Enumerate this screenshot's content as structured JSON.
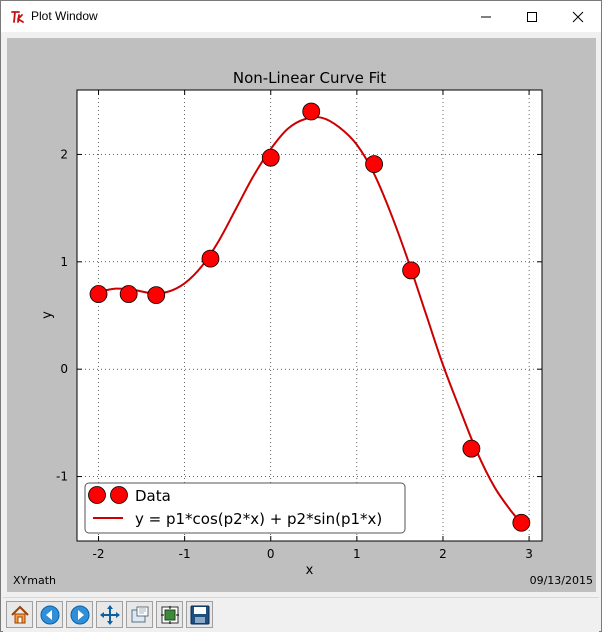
{
  "window": {
    "title": "Plot Window",
    "icon": "tk-feather-icon",
    "controls": [
      "minimize-icon",
      "maximize-icon",
      "close-icon"
    ]
  },
  "status": {
    "left": "XYmath",
    "right": "09/13/2015"
  },
  "toolbar": {
    "buttons": [
      {
        "name": "home-button",
        "icon": "home-icon"
      },
      {
        "name": "back-button",
        "icon": "arrow-left-icon"
      },
      {
        "name": "forward-button",
        "icon": "arrow-right-icon"
      },
      {
        "name": "pan-button",
        "icon": "move-arrows-icon"
      },
      {
        "name": "zoom-button",
        "icon": "zoom-rect-icon"
      },
      {
        "name": "subplots-button",
        "icon": "subplots-icon"
      },
      {
        "name": "save-button",
        "icon": "floppy-disk-icon"
      }
    ]
  },
  "chart_data": {
    "type": "scatter",
    "title": "Non-Linear Curve Fit",
    "xlabel": "x",
    "ylabel": "y",
    "xlim": [
      -2.25,
      3.15
    ],
    "ylim": [
      -1.6,
      2.6
    ],
    "xticks": [
      -2,
      -1,
      0,
      1,
      2,
      3
    ],
    "xtick_labels": [
      "-2",
      "-1",
      "0",
      "1",
      "2",
      "3"
    ],
    "yticks": [
      -1,
      0,
      1,
      2
    ],
    "ytick_labels": [
      "-1",
      "0",
      "1",
      "2"
    ],
    "grid": true,
    "legend_position": "lower-left",
    "series": [
      {
        "name": "Data",
        "kind": "markers",
        "color": "#ff0000",
        "x": [
          -2.0,
          -1.65,
          -1.33,
          -0.7,
          0.0,
          0.47,
          1.2,
          1.63,
          2.33,
          2.91
        ],
        "y": [
          0.7,
          0.7,
          0.69,
          1.03,
          1.97,
          2.4,
          1.91,
          0.92,
          -0.74,
          -1.43
        ]
      },
      {
        "name": "y = p1*cos(p2*x) + p2*sin(p1*x)",
        "kind": "line",
        "color": "#cc0000",
        "x": [
          -2.0,
          -1.8,
          -1.6,
          -1.4,
          -1.2,
          -1.0,
          -0.8,
          -0.6,
          -0.4,
          -0.2,
          0.0,
          0.2,
          0.4,
          0.6,
          0.8,
          1.0,
          1.2,
          1.4,
          1.6,
          1.8,
          2.0,
          2.2,
          2.4,
          2.6,
          2.8,
          2.91
        ],
        "y": [
          0.72,
          0.75,
          0.74,
          0.71,
          0.72,
          0.8,
          0.96,
          1.2,
          1.5,
          1.8,
          2.05,
          2.24,
          2.33,
          2.34,
          2.25,
          2.09,
          1.82,
          1.44,
          1.0,
          0.52,
          0.04,
          -0.38,
          -0.78,
          -1.1,
          -1.33,
          -1.43
        ]
      }
    ]
  }
}
